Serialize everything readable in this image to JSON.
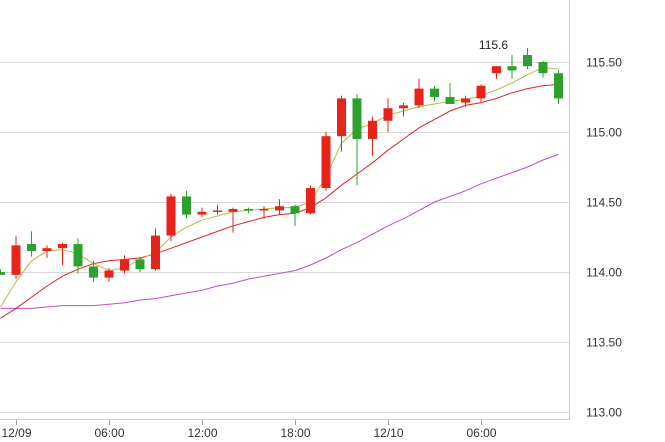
{
  "chart_data": {
    "type": "candlestick",
    "title": "",
    "xlabel": "",
    "ylabel": "",
    "ylim": [
      113.0,
      115.7
    ],
    "grid": true,
    "y_ticks": [
      "115.50",
      "115.00",
      "114.50",
      "114.00",
      "113.50",
      "113.00"
    ],
    "y_tick_values": [
      115.5,
      115.0,
      114.5,
      114.0,
      113.5,
      113.0
    ],
    "x_ticks": [
      "12/09",
      "06:00",
      "12:00",
      "18:00",
      "12/10",
      "06:00"
    ],
    "x_tick_index": [
      1,
      7,
      13,
      19,
      25,
      31
    ],
    "annotation": {
      "text": "115.6",
      "index": 32
    },
    "colors": {
      "up": "#e8231a",
      "down": "#2ea02e",
      "ma_short": "#b9b94a",
      "ma_mid": "#e0242a",
      "ma_long": "#c24fc6",
      "grid": "#d8d8d8",
      "axis": "#cfcfcf"
    },
    "candles": [
      {
        "o": 114.0,
        "h": 114.02,
        "l": 113.98,
        "c": 113.98
      },
      {
        "o": 113.98,
        "h": 114.26,
        "l": 113.95,
        "c": 114.19
      },
      {
        "o": 114.2,
        "h": 114.29,
        "l": 114.11,
        "c": 114.15
      },
      {
        "o": 114.15,
        "h": 114.19,
        "l": 114.1,
        "c": 114.17
      },
      {
        "o": 114.17,
        "h": 114.21,
        "l": 114.05,
        "c": 114.2
      },
      {
        "o": 114.2,
        "h": 114.24,
        "l": 113.99,
        "c": 114.04
      },
      {
        "o": 114.04,
        "h": 114.08,
        "l": 113.93,
        "c": 113.96
      },
      {
        "o": 113.96,
        "h": 114.03,
        "l": 113.93,
        "c": 114.01
      },
      {
        "o": 114.01,
        "h": 114.12,
        "l": 113.99,
        "c": 114.09
      },
      {
        "o": 114.09,
        "h": 114.11,
        "l": 114.0,
        "c": 114.02
      },
      {
        "o": 114.02,
        "h": 114.31,
        "l": 114.01,
        "c": 114.26
      },
      {
        "o": 114.26,
        "h": 114.56,
        "l": 114.22,
        "c": 114.54
      },
      {
        "o": 114.54,
        "h": 114.58,
        "l": 114.38,
        "c": 114.41
      },
      {
        "o": 114.41,
        "h": 114.46,
        "l": 114.39,
        "c": 114.43
      },
      {
        "o": 114.43,
        "h": 114.48,
        "l": 114.41,
        "c": 114.44
      },
      {
        "o": 114.43,
        "h": 114.46,
        "l": 114.28,
        "c": 114.45
      },
      {
        "o": 114.45,
        "h": 114.46,
        "l": 114.42,
        "c": 114.44
      },
      {
        "o": 114.44,
        "h": 114.47,
        "l": 114.38,
        "c": 114.45
      },
      {
        "o": 114.44,
        "h": 114.52,
        "l": 114.41,
        "c": 114.47
      },
      {
        "o": 114.47,
        "h": 114.48,
        "l": 114.33,
        "c": 114.42
      },
      {
        "o": 114.42,
        "h": 114.62,
        "l": 114.41,
        "c": 114.6
      },
      {
        "o": 114.6,
        "h": 115.0,
        "l": 114.58,
        "c": 114.97
      },
      {
        "o": 114.97,
        "h": 115.26,
        "l": 114.86,
        "c": 115.24
      },
      {
        "o": 115.24,
        "h": 115.27,
        "l": 114.62,
        "c": 114.95
      },
      {
        "o": 114.95,
        "h": 115.11,
        "l": 114.83,
        "c": 115.08
      },
      {
        "o": 115.08,
        "h": 115.24,
        "l": 115.0,
        "c": 115.17
      },
      {
        "o": 115.17,
        "h": 115.21,
        "l": 115.11,
        "c": 115.19
      },
      {
        "o": 115.19,
        "h": 115.38,
        "l": 115.17,
        "c": 115.31
      },
      {
        "o": 115.31,
        "h": 115.33,
        "l": 115.22,
        "c": 115.25
      },
      {
        "o": 115.25,
        "h": 115.35,
        "l": 115.2,
        "c": 115.2
      },
      {
        "o": 115.21,
        "h": 115.26,
        "l": 115.18,
        "c": 115.24
      },
      {
        "o": 115.24,
        "h": 115.34,
        "l": 115.21,
        "c": 115.33
      },
      {
        "o": 115.42,
        "h": 115.47,
        "l": 115.38,
        "c": 115.47
      },
      {
        "o": 115.47,
        "h": 115.55,
        "l": 115.38,
        "c": 115.44
      },
      {
        "o": 115.55,
        "h": 115.6,
        "l": 115.45,
        "c": 115.47
      },
      {
        "o": 115.5,
        "h": 115.51,
        "l": 115.39,
        "c": 115.42
      },
      {
        "o": 115.42,
        "h": 115.44,
        "l": 115.2,
        "c": 115.24
      }
    ],
    "ma_short": [
      113.75,
      113.93,
      114.08,
      114.15,
      114.16,
      114.13,
      114.06,
      114.01,
      114.03,
      114.09,
      114.14,
      114.25,
      114.32,
      114.37,
      114.4,
      114.43,
      114.44,
      114.45,
      114.46,
      114.46,
      114.5,
      114.68,
      114.92,
      115.02,
      115.06,
      115.12,
      115.15,
      115.18,
      115.2,
      115.22,
      115.23,
      115.26,
      115.3,
      115.35,
      115.41,
      115.46,
      115.45
    ],
    "ma_mid": [
      113.67,
      113.74,
      113.82,
      113.9,
      113.97,
      114.02,
      114.06,
      114.08,
      114.09,
      114.1,
      114.13,
      114.17,
      114.21,
      114.25,
      114.29,
      114.33,
      114.36,
      114.39,
      114.41,
      114.42,
      114.46,
      114.53,
      114.62,
      114.7,
      114.78,
      114.87,
      114.95,
      115.03,
      115.09,
      115.15,
      115.19,
      115.21,
      115.24,
      115.28,
      115.31,
      115.33,
      115.34
    ],
    "ma_long": [
      113.74,
      113.74,
      113.74,
      113.75,
      113.76,
      113.76,
      113.76,
      113.77,
      113.78,
      113.8,
      113.81,
      113.83,
      113.85,
      113.87,
      113.9,
      113.92,
      113.95,
      113.97,
      113.99,
      114.01,
      114.05,
      114.1,
      114.16,
      114.21,
      114.27,
      114.33,
      114.38,
      114.44,
      114.5,
      114.54,
      114.58,
      114.63,
      114.67,
      114.71,
      114.75,
      114.8,
      114.84
    ]
  }
}
